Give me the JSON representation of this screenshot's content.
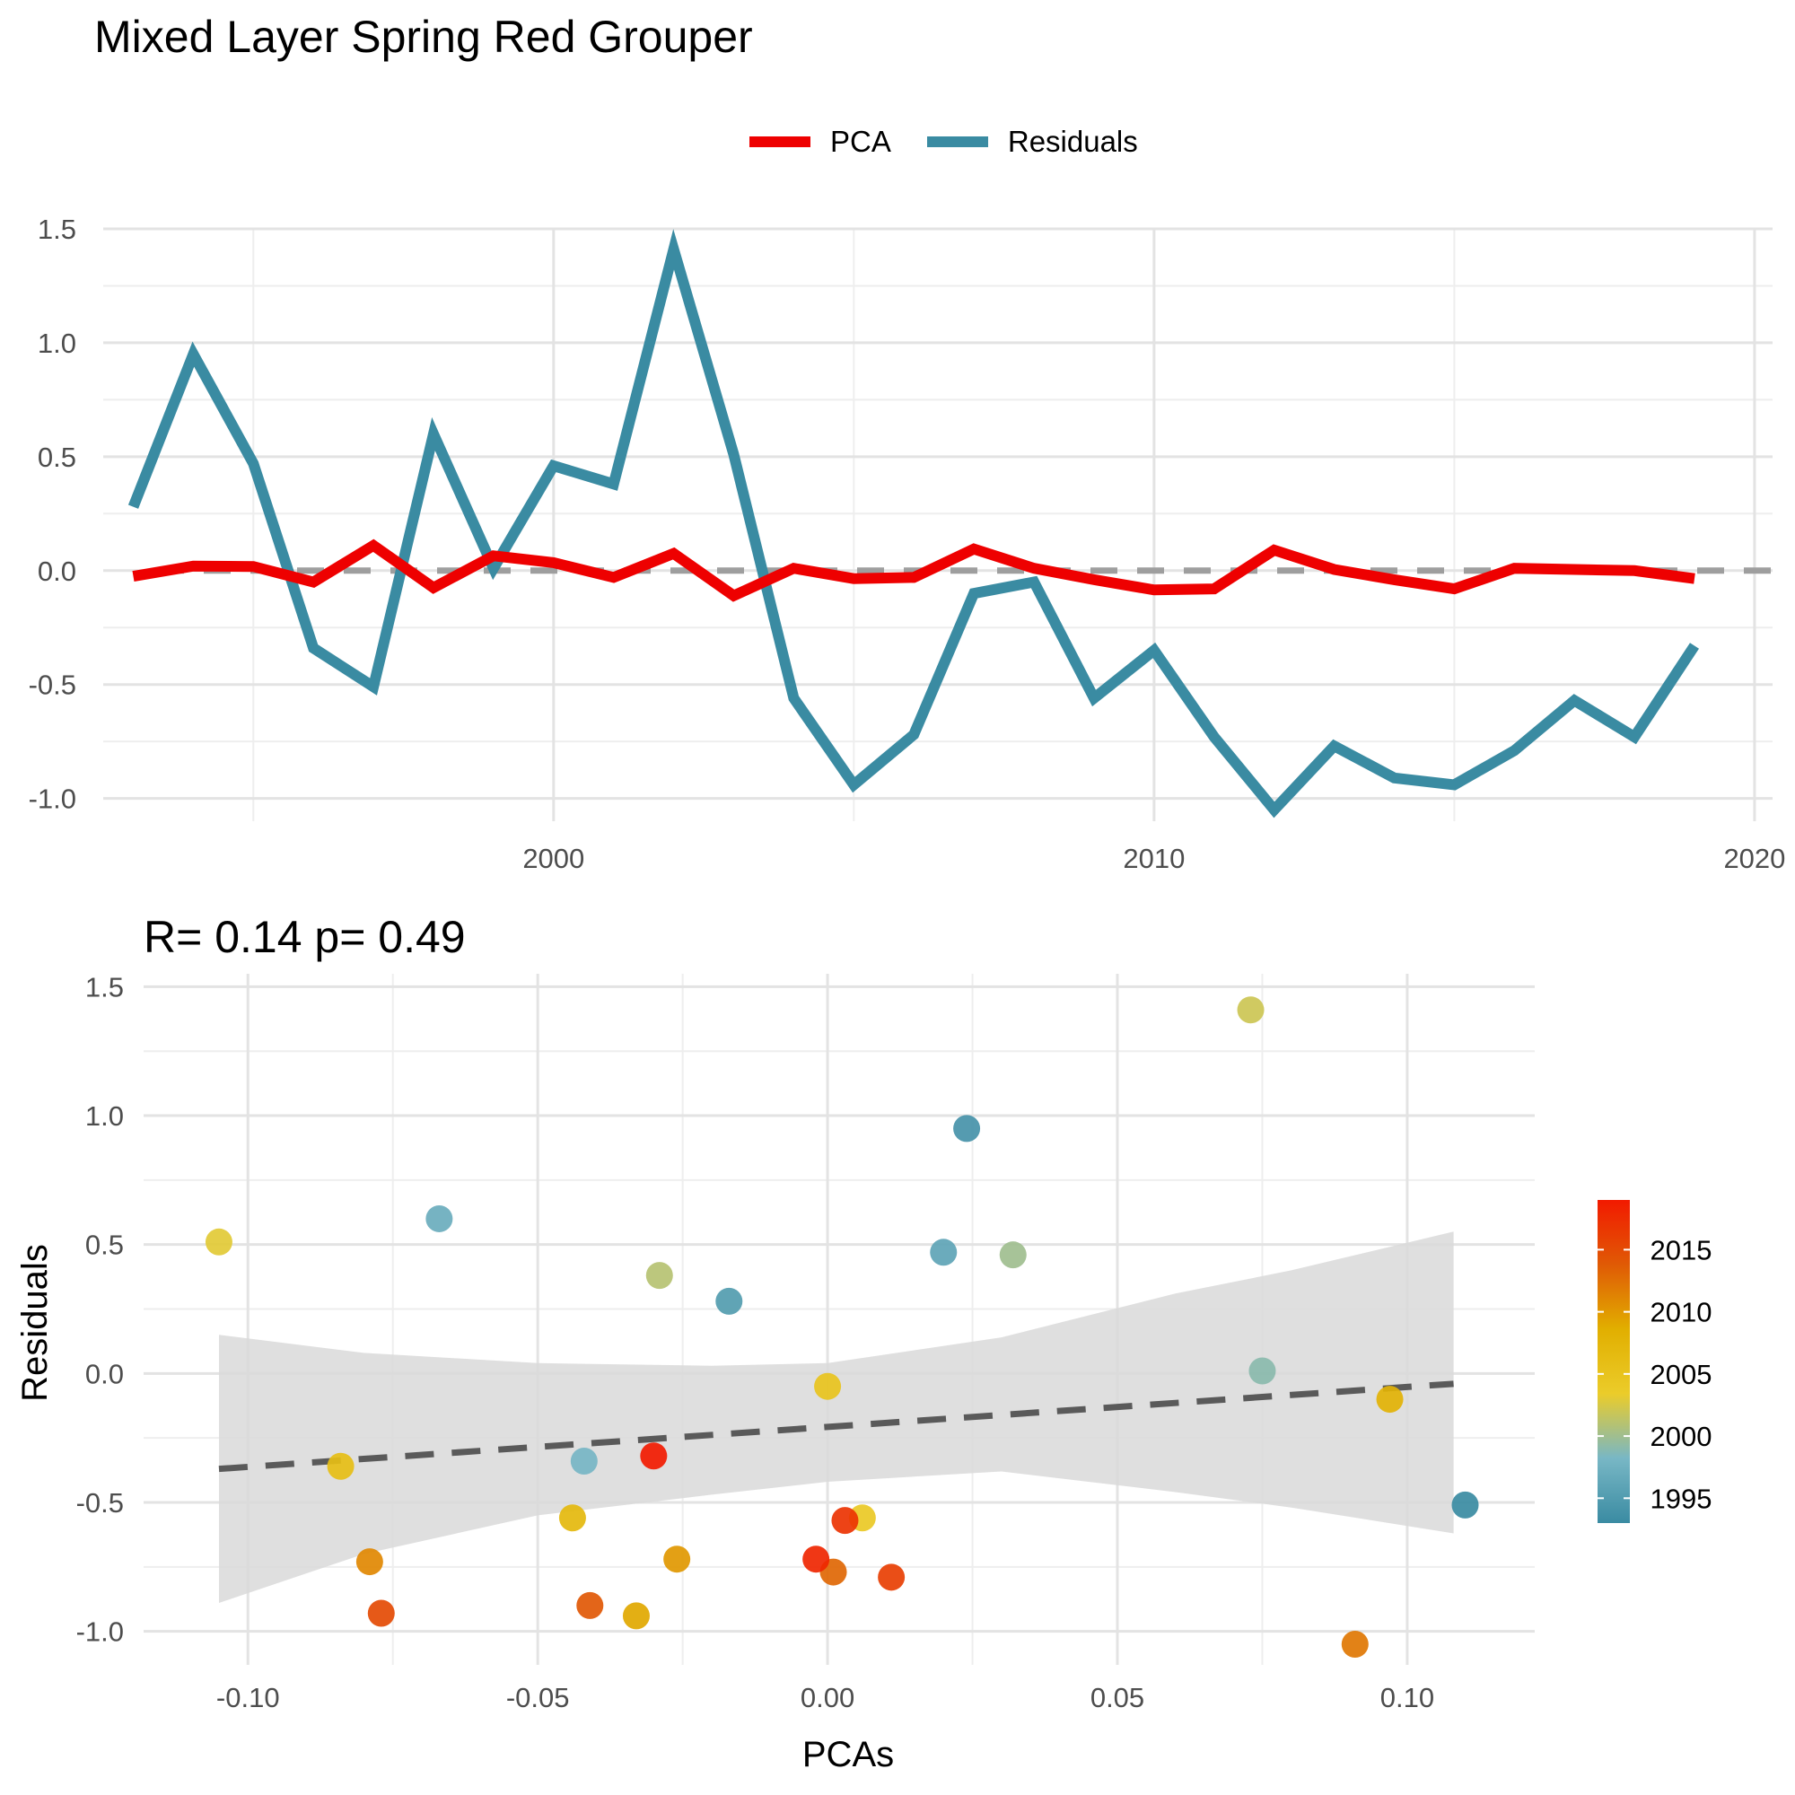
{
  "title": "Mixed Layer Spring Red Grouper",
  "colors": {
    "pca": "#ee0000",
    "residuals": "#3a8ba2",
    "zero_line": "#9e9e9e",
    "fit_line": "#5a5a5a",
    "ribbon": "#d9d9d9",
    "grid_major": "#e3e3e3",
    "grid_minor": "#eeeeee",
    "axis_text": "#4d4d4d",
    "gradient": [
      "#3a8ba2",
      "#78b7c5",
      "#ebcc2a",
      "#e1af00",
      "#e05a05",
      "#f21a00"
    ]
  },
  "legend": {
    "items": [
      {
        "name": "PCA",
        "color": "#ee0000"
      },
      {
        "name": "Residuals",
        "color": "#3a8ba2"
      }
    ]
  },
  "stats_label": "R= 0.14  p= 0.49",
  "chart_data": [
    {
      "type": "line",
      "ylim": [
        -1.1,
        1.5
      ],
      "xlim": [
        1992.5,
        2020.3
      ],
      "x_ticks": [
        "2000",
        "2010",
        "2020"
      ],
      "y_ticks": [
        "1.5",
        "1.0",
        "0.5",
        "0.0",
        "-0.5",
        "-1.0"
      ],
      "reference_line": {
        "y": 0,
        "style": "dashed"
      },
      "x": [
        1993,
        1994,
        1995,
        1996,
        1997,
        1998,
        1999,
        2000,
        2001,
        2002,
        2003,
        2004,
        2005,
        2006,
        2007,
        2008,
        2009,
        2010,
        2011,
        2012,
        2013,
        2014,
        2015,
        2016,
        2017,
        2018,
        2019
      ],
      "series": [
        {
          "name": "PCA",
          "values": [
            -0.025,
            0.02,
            0.018,
            -0.05,
            0.11,
            -0.075,
            0.065,
            0.035,
            -0.03,
            0.075,
            -0.11,
            0.01,
            -0.035,
            -0.03,
            0.095,
            0.01,
            -0.04,
            -0.085,
            -0.08,
            0.09,
            0.005,
            -0.04,
            -0.08,
            0.01,
            0.005,
            0.0,
            -0.035
          ]
        },
        {
          "name": "Residuals",
          "values": [
            0.28,
            0.95,
            0.47,
            -0.34,
            -0.51,
            0.6,
            0.01,
            0.46,
            0.38,
            1.41,
            0.51,
            -0.56,
            -0.94,
            -0.72,
            -0.1,
            -0.05,
            -0.56,
            -0.35,
            -0.73,
            -1.05,
            -0.77,
            -0.91,
            -0.94,
            -0.79,
            -0.57,
            -0.73,
            -0.33
          ]
        }
      ]
    },
    {
      "type": "scatter",
      "xlabel": "PCAs",
      "ylabel": "Residuals",
      "xlim": [
        -0.118,
        0.122
      ],
      "ylim": [
        -1.13,
        1.55
      ],
      "x_ticks": [
        "-0.10",
        "-0.05",
        "0.00",
        "0.05",
        "0.10"
      ],
      "y_ticks": [
        "1.5",
        "1.0",
        "0.5",
        "0.0",
        "-0.5",
        "-1.0"
      ],
      "colorbar": {
        "ticks": [
          "2015",
          "2010",
          "2005",
          "2000",
          "1995"
        ],
        "range": [
          1993,
          2019
        ]
      },
      "points": [
        {
          "year": 1993,
          "x": 0.11,
          "y": -0.51
        },
        {
          "year": 1994,
          "x": 0.024,
          "y": 0.95
        },
        {
          "year": 1995,
          "x": -0.017,
          "y": 0.28
        },
        {
          "year": 1996,
          "x": 0.02,
          "y": 0.47
        },
        {
          "year": 1997,
          "x": -0.067,
          "y": 0.6
        },
        {
          "year": 1998,
          "x": -0.042,
          "y": -0.34
        },
        {
          "year": 1999,
          "x": 0.075,
          "y": 0.01
        },
        {
          "year": 2000,
          "x": 0.032,
          "y": 0.46
        },
        {
          "year": 2001,
          "x": -0.029,
          "y": 0.38
        },
        {
          "year": 2002,
          "x": 0.073,
          "y": 1.41
        },
        {
          "year": 2003,
          "x": -0.105,
          "y": 0.51
        },
        {
          "year": 2004,
          "x": 0.006,
          "y": -0.56
        },
        {
          "year": 2005,
          "x": 0.0,
          "y": -0.05
        },
        {
          "year": 2006,
          "x": -0.084,
          "y": -0.36
        },
        {
          "year": 2007,
          "x": -0.044,
          "y": -0.56
        },
        {
          "year": 2008,
          "x": 0.097,
          "y": -0.1
        },
        {
          "year": 2009,
          "x": -0.033,
          "y": -0.94
        },
        {
          "year": 2010,
          "x": -0.026,
          "y": -0.72
        },
        {
          "year": 2011,
          "x": -0.079,
          "y": -0.73
        },
        {
          "year": 2012,
          "x": 0.091,
          "y": -1.05
        },
        {
          "year": 2013,
          "x": 0.001,
          "y": -0.77
        },
        {
          "year": 2014,
          "x": -0.041,
          "y": -0.9
        },
        {
          "year": 2015,
          "x": -0.077,
          "y": -0.93
        },
        {
          "year": 2016,
          "x": 0.011,
          "y": -0.79
        },
        {
          "year": 2017,
          "x": 0.003,
          "y": -0.57
        },
        {
          "year": 2018,
          "x": -0.002,
          "y": -0.72
        },
        {
          "year": 2019,
          "x": -0.03,
          "y": -0.32
        }
      ],
      "fit": {
        "x0": -0.105,
        "y0": -0.37,
        "x1": 0.108,
        "y1": -0.04,
        "style": "dashed"
      },
      "ribbon": {
        "x": [
          -0.105,
          -0.08,
          -0.05,
          -0.02,
          0.0,
          0.03,
          0.06,
          0.08,
          0.108
        ],
        "upper": [
          0.15,
          0.08,
          0.04,
          0.03,
          0.04,
          0.14,
          0.31,
          0.4,
          0.55
        ],
        "lower": [
          -0.89,
          -0.7,
          -0.55,
          -0.47,
          -0.42,
          -0.38,
          -0.46,
          -0.52,
          -0.62
        ]
      }
    }
  ]
}
